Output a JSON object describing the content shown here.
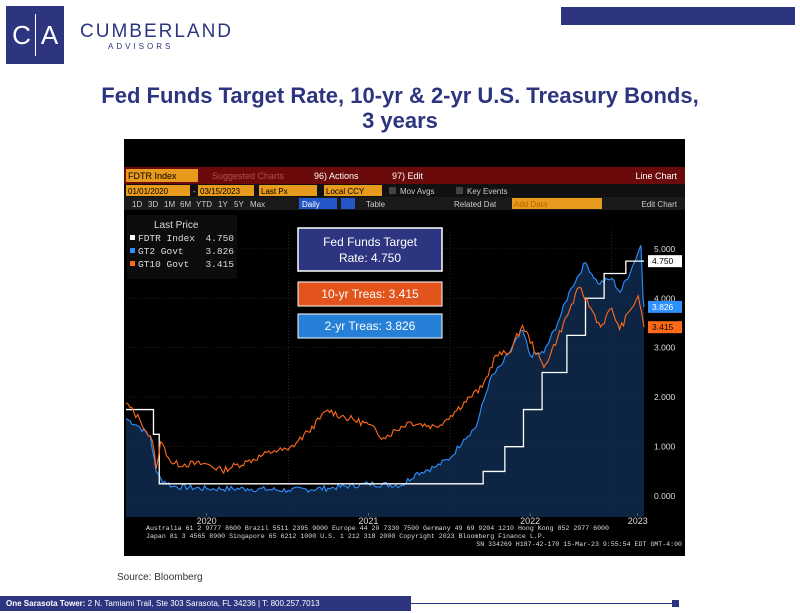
{
  "logo": {
    "letter1": "C",
    "letter2": "A",
    "brand": "CUMBERLAND",
    "sub": "ADVISORS"
  },
  "title_line1": "Fed Funds Target Rate, 10-yr & 2-yr U.S. Treasury Bonds,",
  "title_line2": "3 years",
  "terminal": {
    "ticker": "FDTR Index",
    "suggested": "Suggested Charts",
    "actions": "96) Actions",
    "edit": "97) Edit",
    "chart_type": "Line Chart",
    "date_start": "01/01/2020",
    "date_end": "03/15/2023",
    "field": "Last Px",
    "currency": "Local CCY",
    "mov_avgs": "Mov Avgs",
    "key_events": "Key Events",
    "periods": [
      "1D",
      "3D",
      "1M",
      "6M",
      "YTD",
      "1Y",
      "5Y",
      "Max"
    ],
    "freq": "Daily",
    "table": "Table",
    "related": "Related Dat",
    "add_data": "Add Data",
    "edit_chart": "Edit Chart",
    "footer1": "Australia 61 2 9777 8600 Brazil 5511 2395 9000 Europe 44 20 7330 7500 Germany 49 69 9204 1210 Hong Kong 852 2977 6000",
    "footer2": "Japan 81 3 4565 8900      Singapore 65 6212 1000      U.S. 1 212 318 2000          Copyright 2023 Bloomberg Finance L.P.",
    "footer3": "SN 334269 H187-42-170 15-Mar-23  9:55:54 EDT  GMT-4:00"
  },
  "legend": {
    "header": "Last Price",
    "rows": [
      {
        "name": "FDTR Index",
        "value": "4.750",
        "color": "#ffffff"
      },
      {
        "name": "GT2 Govt",
        "value": "3.826",
        "color": "#2e8fff"
      },
      {
        "name": "GT10 Govt",
        "value": "3.415",
        "color": "#ff6a1a"
      }
    ]
  },
  "callouts": {
    "fed_line1": "Fed Funds Target",
    "fed_line2": "Rate: 4.750",
    "ten_yr": "10-yr Treas: 3.415",
    "two_yr": "2-yr Treas: 3.826"
  },
  "source": "Source: Bloomberg",
  "footer": {
    "address_bold": "One Sarasota Tower:",
    "address": "2 N. Tamiami Trail, Ste 303  Sarasota, FL 34236   |   T: 800.257.7013"
  },
  "chart_data": {
    "type": "line",
    "x_labels": [
      "2020",
      "2021",
      "2022",
      "2023"
    ],
    "y_ticks": [
      "0.000",
      "1.000",
      "2.000",
      "3.000",
      "4.000",
      "5.000"
    ],
    "ylim": [
      -0.3,
      5.4
    ],
    "xlim": [
      "2020-01-01",
      "2023-03-15"
    ],
    "last_values": [
      {
        "label": "4.750",
        "value": 4.75,
        "color": "#ffffff",
        "text_color": "#000000"
      },
      {
        "label": "3.826",
        "value": 3.826,
        "color": "#2e8fff",
        "text_color": "#ffffff"
      },
      {
        "label": "3.415",
        "value": 3.415,
        "color": "#ff6a1a",
        "text_color": "#000000"
      }
    ],
    "series": [
      {
        "name": "FDTR Index",
        "color": "#ffffff",
        "step": true,
        "points": [
          [
            "2020-01-01",
            1.75
          ],
          [
            "2020-03-03",
            1.25
          ],
          [
            "2020-03-16",
            0.25
          ],
          [
            "2022-03-17",
            0.5
          ],
          [
            "2022-05-05",
            1.0
          ],
          [
            "2022-06-16",
            1.75
          ],
          [
            "2022-07-28",
            2.5
          ],
          [
            "2022-09-22",
            3.25
          ],
          [
            "2022-11-03",
            4.0
          ],
          [
            "2022-12-15",
            4.5
          ],
          [
            "2023-02-02",
            4.75
          ],
          [
            "2023-03-15",
            4.75
          ]
        ]
      },
      {
        "name": "GT2 Govt",
        "color": "#2e8fff",
        "area": true,
        "points": [
          [
            "2020-01-01",
            1.57
          ],
          [
            "2020-02-01",
            1.4
          ],
          [
            "2020-02-25",
            1.2
          ],
          [
            "2020-03-09",
            0.5
          ],
          [
            "2020-03-20",
            0.35
          ],
          [
            "2020-04-15",
            0.2
          ],
          [
            "2020-07-01",
            0.15
          ],
          [
            "2020-10-01",
            0.15
          ],
          [
            "2021-01-01",
            0.12
          ],
          [
            "2021-04-01",
            0.16
          ],
          [
            "2021-07-01",
            0.25
          ],
          [
            "2021-09-15",
            0.22
          ],
          [
            "2021-10-15",
            0.45
          ],
          [
            "2021-12-01",
            0.6
          ],
          [
            "2022-01-03",
            0.78
          ],
          [
            "2022-02-01",
            1.15
          ],
          [
            "2022-03-01",
            1.4
          ],
          [
            "2022-04-01",
            2.35
          ],
          [
            "2022-05-01",
            2.7
          ],
          [
            "2022-06-14",
            3.35
          ],
          [
            "2022-07-01",
            2.85
          ],
          [
            "2022-08-01",
            2.9
          ],
          [
            "2022-09-01",
            3.5
          ],
          [
            "2022-10-01",
            4.2
          ],
          [
            "2022-11-03",
            4.72
          ],
          [
            "2022-12-01",
            4.3
          ],
          [
            "2023-01-01",
            4.4
          ],
          [
            "2023-01-20",
            4.12
          ],
          [
            "2023-02-15",
            4.6
          ],
          [
            "2023-03-08",
            5.07
          ],
          [
            "2023-03-13",
            4.0
          ],
          [
            "2023-03-15",
            3.826
          ]
        ]
      },
      {
        "name": "GT10 Govt",
        "color": "#ff6a1a",
        "points": [
          [
            "2020-01-01",
            1.88
          ],
          [
            "2020-02-01",
            1.55
          ],
          [
            "2020-03-01",
            1.1
          ],
          [
            "2020-03-09",
            0.55
          ],
          [
            "2020-03-19",
            1.1
          ],
          [
            "2020-04-15",
            0.65
          ],
          [
            "2020-07-01",
            0.65
          ],
          [
            "2020-08-04",
            0.52
          ],
          [
            "2020-10-01",
            0.7
          ],
          [
            "2020-12-01",
            0.92
          ],
          [
            "2021-01-01",
            0.93
          ],
          [
            "2021-02-15",
            1.3
          ],
          [
            "2021-03-31",
            1.74
          ],
          [
            "2021-05-01",
            1.62
          ],
          [
            "2021-07-01",
            1.45
          ],
          [
            "2021-08-04",
            1.18
          ],
          [
            "2021-10-01",
            1.5
          ],
          [
            "2021-12-01",
            1.4
          ],
          [
            "2022-01-03",
            1.63
          ],
          [
            "2022-02-15",
            2.0
          ],
          [
            "2022-03-15",
            2.2
          ],
          [
            "2022-04-15",
            2.85
          ],
          [
            "2022-05-15",
            2.9
          ],
          [
            "2022-06-14",
            3.45
          ],
          [
            "2022-08-01",
            2.6
          ],
          [
            "2022-09-01",
            3.2
          ],
          [
            "2022-10-20",
            4.22
          ],
          [
            "2022-11-15",
            3.8
          ],
          [
            "2022-12-07",
            3.42
          ],
          [
            "2023-01-01",
            3.8
          ],
          [
            "2023-01-19",
            3.37
          ],
          [
            "2023-02-15",
            3.8
          ],
          [
            "2023-03-02",
            4.05
          ],
          [
            "2023-03-10",
            3.7
          ],
          [
            "2023-03-15",
            3.415
          ]
        ]
      }
    ]
  }
}
